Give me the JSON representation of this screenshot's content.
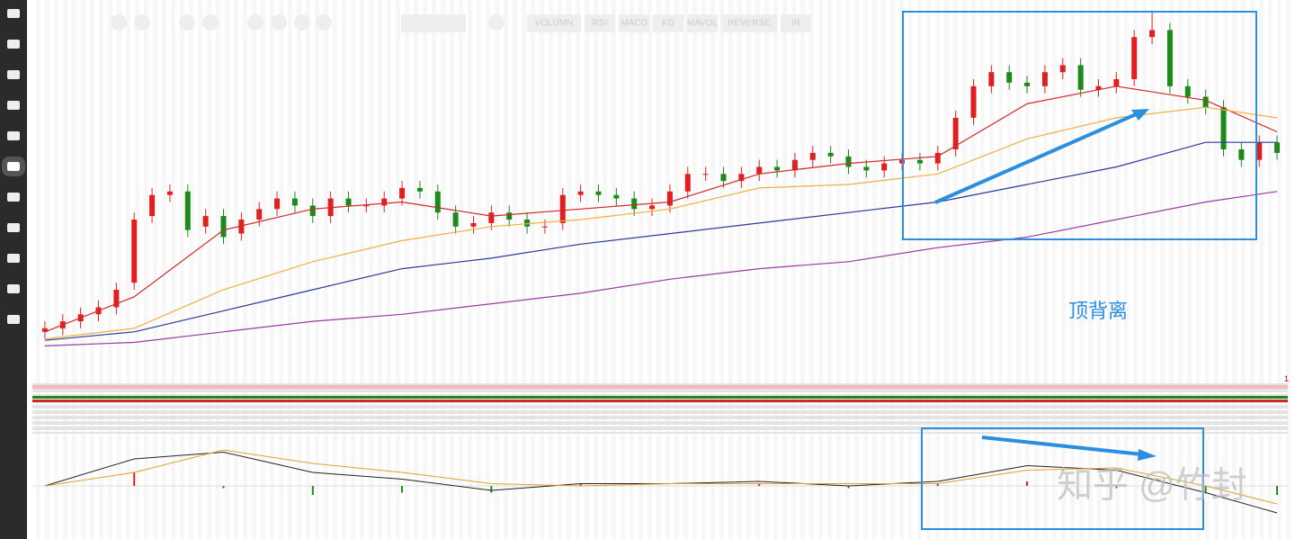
{
  "toolbar": {
    "buttons": [
      "VOLUMN",
      "RSI",
      "MACD",
      "KD",
      "MAVOL",
      "REVERSE",
      "IR"
    ]
  },
  "annotation": "顶背离",
  "watermark": "知乎 @竹封",
  "strip_marker": "1",
  "chart_data": {
    "type": "candlestick",
    "ylim": [
      0,
      100
    ],
    "up_color": "#e02020",
    "down_color": "#1a8a1a",
    "open": [
      8,
      9,
      11,
      13,
      15,
      22,
      41,
      47,
      48,
      38,
      41,
      36,
      40,
      43,
      46,
      44,
      41,
      46,
      44,
      44,
      46,
      49,
      48,
      42,
      38,
      39,
      42,
      40,
      38,
      39,
      47,
      48,
      47,
      46,
      43,
      44,
      48,
      53,
      53,
      51,
      53,
      55,
      54,
      57,
      59,
      58,
      55,
      54,
      56,
      57,
      56,
      60,
      69,
      78,
      82,
      79,
      78,
      82,
      84,
      77,
      78,
      80,
      92,
      94,
      78,
      75,
      72,
      60,
      57,
      62
    ],
    "close": [
      9,
      11,
      13,
      15,
      20,
      40,
      47,
      48,
      37,
      41,
      35,
      40,
      43,
      46,
      44,
      41,
      46,
      44,
      44,
      46,
      49,
      48,
      42,
      38,
      39,
      42,
      40,
      38,
      38,
      47,
      48,
      47,
      46,
      43,
      44,
      48,
      53,
      53,
      51,
      53,
      55,
      54,
      57,
      59,
      58,
      55,
      54,
      56,
      57,
      56,
      59,
      69,
      78,
      82,
      79,
      78,
      82,
      84,
      77,
      78,
      80,
      92,
      94,
      78,
      75,
      72,
      60,
      57,
      62,
      59
    ],
    "high": [
      11,
      13,
      15,
      17,
      22,
      42,
      49,
      50,
      50,
      43,
      43,
      42,
      45,
      48,
      48,
      46,
      48,
      48,
      46,
      48,
      51,
      51,
      50,
      44,
      41,
      44,
      44,
      42,
      40,
      49,
      50,
      50,
      49,
      48,
      46,
      50,
      55,
      55,
      55,
      55,
      57,
      57,
      59,
      61,
      61,
      60,
      57,
      58,
      59,
      59,
      61,
      71,
      80,
      84,
      84,
      81,
      84,
      86,
      86,
      80,
      82,
      94,
      99,
      96,
      80,
      77,
      74,
      62,
      64,
      64
    ],
    "low": [
      6,
      7,
      9,
      11,
      13,
      20,
      39,
      45,
      35,
      36,
      33,
      34,
      38,
      41,
      42,
      39,
      39,
      42,
      42,
      42,
      44,
      46,
      40,
      36,
      36,
      37,
      38,
      36,
      36,
      37,
      45,
      45,
      44,
      41,
      41,
      42,
      46,
      51,
      49,
      49,
      51,
      52,
      52,
      55,
      56,
      53,
      52,
      52,
      54,
      54,
      54,
      58,
      67,
      76,
      77,
      76,
      76,
      80,
      75,
      75,
      76,
      78,
      90,
      76,
      73,
      70,
      58,
      55,
      55,
      57
    ],
    "ma_x": [
      0,
      5,
      10,
      15,
      20,
      25,
      30,
      35,
      40,
      45,
      50,
      55,
      60,
      65,
      69
    ],
    "series": [
      {
        "color": "#d02828",
        "values": [
          8,
          18,
          37,
          43,
          45,
          41,
          43,
          45,
          53,
          56,
          58,
          73,
          78,
          74,
          65
        ]
      },
      {
        "color": "#f0b040",
        "values": [
          6,
          9,
          20,
          28,
          34,
          38,
          40,
          43,
          49,
          50,
          53,
          63,
          69,
          72,
          69
        ]
      },
      {
        "color": "#2a3a9a",
        "values": [
          5.6,
          8,
          14,
          20,
          26,
          29,
          33,
          36,
          39,
          42,
          45,
          50,
          55,
          62,
          62
        ]
      },
      {
        "color": "#9a3aa0",
        "values": [
          4,
          5,
          8,
          11,
          13,
          16,
          19,
          23,
          26,
          28,
          32,
          35,
          40,
          45,
          48
        ]
      }
    ],
    "macd": {
      "ylim": [
        -2,
        2
      ],
      "dif": [
        0,
        1.2,
        1.5,
        0.6,
        0.3,
        -0.2,
        0.1,
        0.1,
        0.2,
        0,
        0.2,
        0.9,
        0.7,
        -0.3,
        -1.2
      ],
      "dea": [
        0,
        0.6,
        1.6,
        1.0,
        0.6,
        0.1,
        0,
        0.1,
        0.1,
        0.1,
        0.1,
        0.7,
        0.8,
        0,
        -0.8
      ],
      "hist": [
        0,
        0.6,
        -0.1,
        -0.4,
        -0.3,
        -0.3,
        0.1,
        0,
        0.1,
        -0.1,
        0.1,
        0.2,
        -0.1,
        -0.3,
        -0.4
      ]
    }
  }
}
